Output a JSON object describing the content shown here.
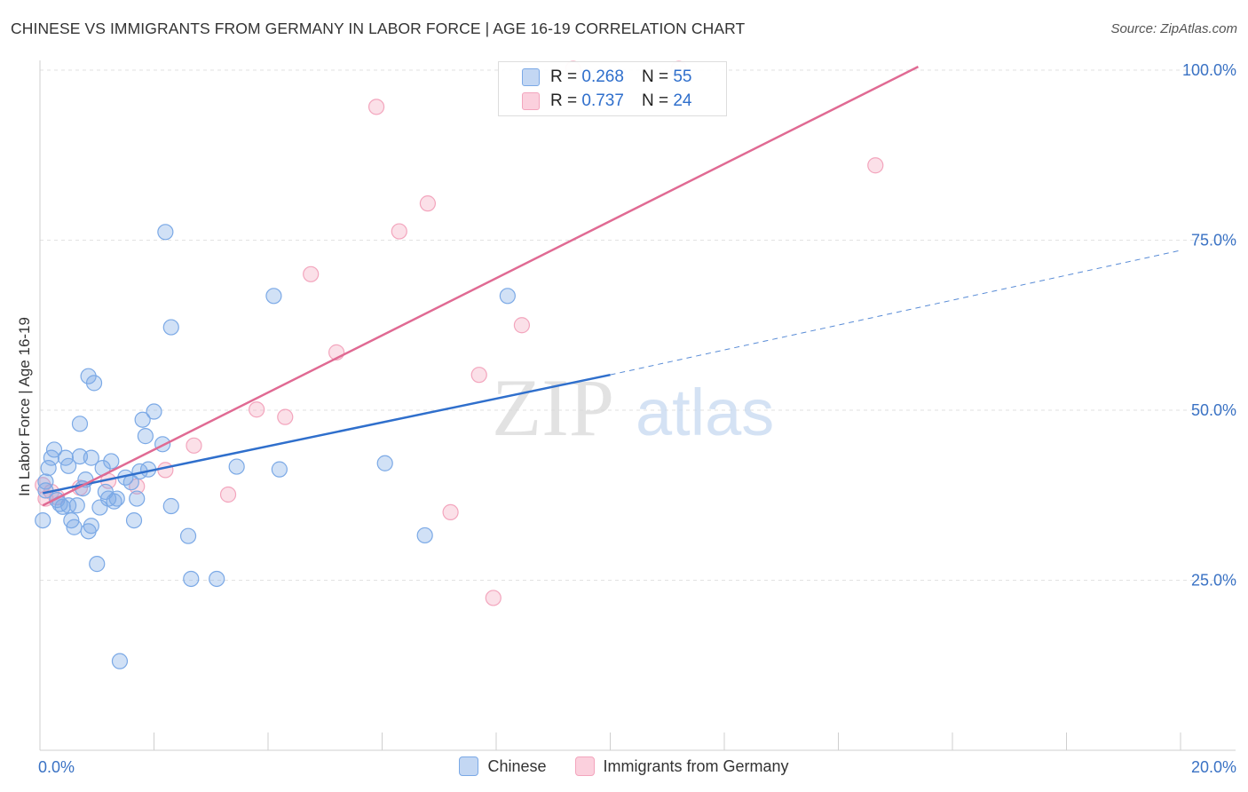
{
  "title": "CHINESE VS IMMIGRANTS FROM GERMANY IN LABOR FORCE | AGE 16-19 CORRELATION CHART",
  "source": "Source: ZipAtlas.com",
  "watermark": {
    "zip": "ZIP",
    "atlas": "atlas"
  },
  "legend_top": [
    {
      "r_label": "R =",
      "r_value": "0.268",
      "n_label": "N =",
      "n_value": "55"
    },
    {
      "r_label": "R =",
      "r_value": "0.737",
      "n_label": "N =",
      "n_value": "24"
    }
  ],
  "chart_data": {
    "type": "scatter",
    "title": "CHINESE VS IMMIGRANTS FROM GERMANY IN LABOR FORCE | AGE 16-19 CORRELATION CHART",
    "xlabel": "",
    "ylabel": "In Labor Force | Age 16-19",
    "xlim": [
      0,
      20
    ],
    "ylim": [
      0,
      105
    ],
    "x_tick_labels": [
      {
        "value": 0,
        "label": "0.0%"
      },
      {
        "value": 20,
        "label": "20.0%"
      }
    ],
    "y_tick_labels": [
      {
        "value": 25,
        "label": "25.0%"
      },
      {
        "value": 50,
        "label": "50.0%"
      },
      {
        "value": 75,
        "label": "75.0%"
      },
      {
        "value": 100,
        "label": "100.0%"
      }
    ],
    "grid": true,
    "legend_position": "bottom",
    "colors": {
      "chinese": "#7ba9e6",
      "germany": "#f3a5bd",
      "chinese_line": "#2f6fcc",
      "germany_line": "#e06a93"
    },
    "series": [
      {
        "name": "Chinese",
        "r": 0.268,
        "n": 55,
        "trend": {
          "solid": [
            [
              0.05,
              37.8
            ],
            [
              10.0,
              55.2
            ]
          ],
          "dashed": [
            [
              10.0,
              55.2
            ],
            [
              20.0,
              73.5
            ]
          ]
        },
        "points": [
          [
            0.05,
            33.8
          ],
          [
            0.1,
            39.5
          ],
          [
            0.15,
            41.5
          ],
          [
            0.2,
            43
          ],
          [
            0.25,
            44.2
          ],
          [
            0.3,
            36.8
          ],
          [
            0.35,
            36.2
          ],
          [
            0.4,
            35.8
          ],
          [
            0.45,
            43
          ],
          [
            0.5,
            36
          ],
          [
            0.5,
            41.8
          ],
          [
            0.55,
            33.8
          ],
          [
            0.6,
            32.8
          ],
          [
            0.65,
            36
          ],
          [
            0.7,
            48
          ],
          [
            0.7,
            43.2
          ],
          [
            0.75,
            38.5
          ],
          [
            0.8,
            39.8
          ],
          [
            0.85,
            55
          ],
          [
            0.85,
            32.2
          ],
          [
            0.9,
            33
          ],
          [
            0.9,
            43
          ],
          [
            0.95,
            54
          ],
          [
            1.0,
            27.4
          ],
          [
            1.05,
            35.7
          ],
          [
            1.1,
            41.5
          ],
          [
            1.15,
            38
          ],
          [
            1.2,
            37
          ],
          [
            1.25,
            42.5
          ],
          [
            1.3,
            36.6
          ],
          [
            1.35,
            37
          ],
          [
            1.4,
            13.1
          ],
          [
            1.5,
            40.1
          ],
          [
            1.6,
            39.4
          ],
          [
            1.65,
            33.8
          ],
          [
            1.7,
            37
          ],
          [
            1.75,
            41
          ],
          [
            1.8,
            48.6
          ],
          [
            1.85,
            46.2
          ],
          [
            1.9,
            41.3
          ],
          [
            2.0,
            49.8
          ],
          [
            2.15,
            45
          ],
          [
            2.2,
            76.2
          ],
          [
            2.3,
            35.9
          ],
          [
            2.3,
            62.2
          ],
          [
            2.6,
            31.5
          ],
          [
            2.65,
            25.2
          ],
          [
            3.1,
            25.2
          ],
          [
            3.45,
            41.7
          ],
          [
            4.1,
            66.8
          ],
          [
            4.2,
            41.3
          ],
          [
            6.05,
            42.2
          ],
          [
            6.75,
            31.6
          ],
          [
            8.2,
            66.8
          ],
          [
            0.1,
            38.2
          ]
        ]
      },
      {
        "name": "Immigrants from Germany",
        "r": 0.737,
        "n": 24,
        "trend": {
          "solid": [
            [
              0.05,
              36.0
            ],
            [
              15.4,
              100.5
            ]
          ]
        },
        "points": [
          [
            0.05,
            39
          ],
          [
            0.1,
            37
          ],
          [
            0.2,
            38
          ],
          [
            0.3,
            37.2
          ],
          [
            0.7,
            38.6
          ],
          [
            1.2,
            39.6
          ],
          [
            1.7,
            38.8
          ],
          [
            2.2,
            41.2
          ],
          [
            2.7,
            44.8
          ],
          [
            3.3,
            37.6
          ],
          [
            3.8,
            50.1
          ],
          [
            4.3,
            49
          ],
          [
            4.75,
            70
          ],
          [
            5.2,
            58.5
          ],
          [
            5.9,
            94.6
          ],
          [
            6.3,
            76.3
          ],
          [
            6.8,
            80.4
          ],
          [
            7.2,
            35
          ],
          [
            7.7,
            55.2
          ],
          [
            7.95,
            22.4
          ],
          [
            8.45,
            62.5
          ],
          [
            9.35,
            100.2
          ],
          [
            11.2,
            100.2
          ],
          [
            14.65,
            86
          ]
        ]
      }
    ]
  }
}
